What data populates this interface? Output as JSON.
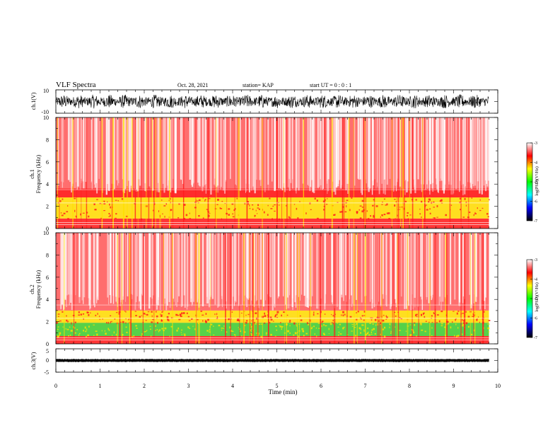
{
  "header": {
    "title": "VLF Spectra",
    "date": "Oct. 28, 2021",
    "station": "station= KAP",
    "start": "start UT =  0 : 0 : 1"
  },
  "colors": {
    "background": "#ffffff",
    "axes": "#000000",
    "waveform": "#000000",
    "spectrogram_white": "#ffffff",
    "spectrogram_red": "#ff1a1a",
    "spectrogram_yellow": "#ffe000",
    "spectrogram_green": "#38d030",
    "colorbar_stops": [
      "#ffffff",
      "#ff0000",
      "#ffff00",
      "#00ff00",
      "#00ffff",
      "#0000ff",
      "#000000"
    ]
  },
  "chart_data": [
    {
      "type": "line",
      "name": "ch1-waveform",
      "ylabel": "ch.1(V)",
      "ylim": [
        -10,
        10
      ],
      "yticks": [
        "10",
        "-10"
      ],
      "xlim": [
        0,
        10
      ],
      "data_extent_min": 9.8,
      "description_values": {
        "typical_min": -6,
        "typical_max": 6
      }
    },
    {
      "type": "heatmap",
      "name": "ch1-spectrogram",
      "ylabel_line1": "ch.1",
      "ylabel_line2": "Frequency (kHz)",
      "ylim": [
        0,
        10
      ],
      "yticks": [
        "0",
        "2",
        "4",
        "6",
        "8",
        "10"
      ],
      "xlim": [
        0,
        10
      ],
      "data_extent_min": 9.8,
      "colorbar": {
        "label": "log(PSD)(V²/Hz)",
        "range": [
          -7,
          -3
        ],
        "ticks": [
          "-3",
          "-4",
          "-5",
          "-6",
          "-7"
        ]
      },
      "bands_khz": [
        {
          "from": 0.0,
          "to": 0.9,
          "level": "red"
        },
        {
          "from": 0.9,
          "to": 2.8,
          "level": "yellow"
        },
        {
          "from": 2.8,
          "to": 3.6,
          "level": "red-dense"
        },
        {
          "from": 3.6,
          "to": 10.0,
          "level": "red-sparse"
        }
      ]
    },
    {
      "type": "heatmap",
      "name": "ch2-spectrogram",
      "ylabel_line1": "ch.2",
      "ylabel_line2": "Frequency (kHz)",
      "ylim": [
        0,
        10
      ],
      "yticks": [
        "0",
        "2",
        "4",
        "6",
        "8",
        "10"
      ],
      "xlim": [
        0,
        10
      ],
      "data_extent_min": 9.8,
      "colorbar": {
        "label": "log(PSD)(V²/Hz)",
        "range": [
          -7,
          -3
        ],
        "ticks": [
          "-3",
          "-4",
          "-5",
          "-6",
          "-7"
        ]
      },
      "bands_khz": [
        {
          "from": 0.0,
          "to": 0.7,
          "level": "red"
        },
        {
          "from": 0.7,
          "to": 1.9,
          "level": "green"
        },
        {
          "from": 1.9,
          "to": 3.0,
          "level": "yellow"
        },
        {
          "from": 3.0,
          "to": 10.0,
          "level": "red-sparse"
        }
      ]
    },
    {
      "type": "line",
      "name": "ch3-waveform",
      "ylabel": "ch.3(V)",
      "ylim": [
        -5,
        5
      ],
      "yticks": [
        "5",
        "0",
        "-5"
      ],
      "xlim": [
        0,
        10
      ],
      "data_extent_min": 9.8,
      "description_values": {
        "typical_min": -0.7,
        "typical_max": 0.7
      }
    }
  ],
  "xaxis": {
    "label": "Time (min)",
    "ticks": [
      "0",
      "1",
      "2",
      "3",
      "4",
      "5",
      "6",
      "7",
      "8",
      "9",
      "10"
    ]
  }
}
